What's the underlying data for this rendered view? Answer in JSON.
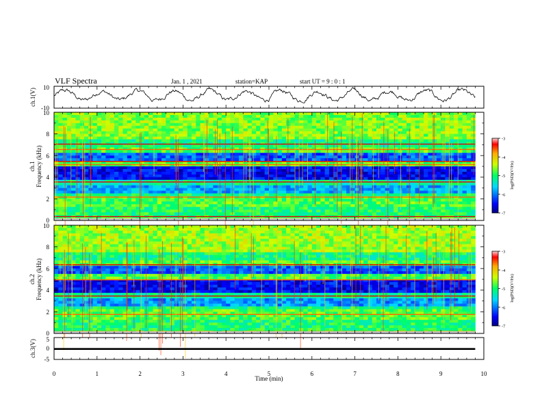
{
  "header": {
    "title": "VLF Spectra",
    "date": "Jan. 1 , 2021",
    "station": "station=KAP",
    "start": "start UT = 9 : 0 : 1"
  },
  "colorbar": {
    "label": "log(PSD)(V²/Hz)",
    "ticks": [
      "-3",
      "-4",
      "-5",
      "-6",
      "-7"
    ]
  },
  "chart_data": [
    {
      "type": "line",
      "ylabel": "ch.1(V)",
      "ylim": [
        -10,
        10
      ],
      "yticks": [
        "10",
        "-10"
      ],
      "xlim": [
        0,
        10
      ],
      "x_end": 9.8,
      "baseline": 1.5
    },
    {
      "type": "heatmap",
      "ylabel": "ch.1\nFrequency (kHz)",
      "ylim": [
        0,
        10
      ],
      "yticks": [
        "0",
        "2",
        "4",
        "6",
        "8",
        "10"
      ],
      "clim": [
        -7,
        -3
      ],
      "x_end": 9.8
    },
    {
      "type": "heatmap",
      "ylabel": "ch.2\nFrequency (kHz)",
      "ylim": [
        0,
        10
      ],
      "yticks": [
        "0",
        "2",
        "4",
        "6",
        "8",
        "10"
      ],
      "clim": [
        -7,
        -3
      ],
      "x_end": 9.8
    },
    {
      "type": "line",
      "ylabel": "ch.3(V)",
      "ylim": [
        -5,
        5
      ],
      "yticks": [
        "5",
        "0",
        "-5"
      ],
      "xlim": [
        0,
        10
      ],
      "x_end": 9.8,
      "value_band": [
        -0.6,
        0.2
      ]
    },
    {
      "type": "axis",
      "xlabel": "Time (min)",
      "xlim": [
        0,
        10
      ],
      "xticks": [
        "0",
        "1",
        "2",
        "3",
        "4",
        "5",
        "6",
        "7",
        "8",
        "9",
        "10"
      ]
    }
  ]
}
